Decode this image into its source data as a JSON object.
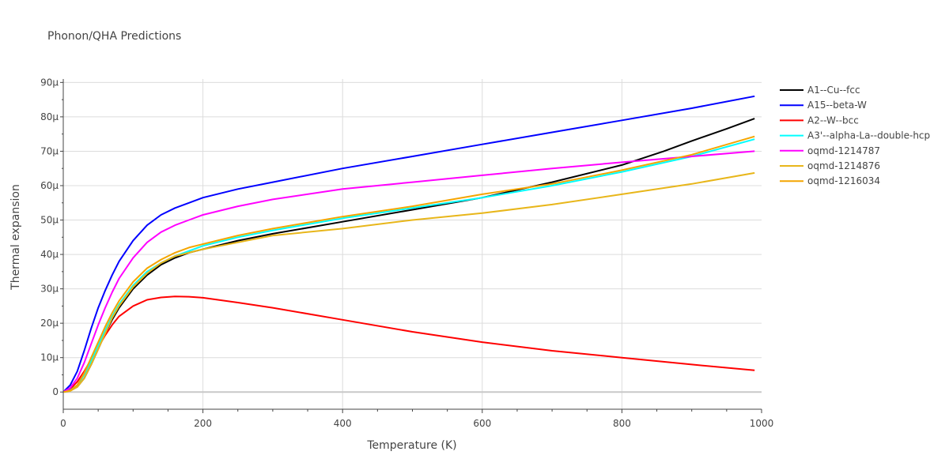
{
  "chart_data": {
    "type": "line",
    "title": "Phonon/QHA Predictions",
    "xlabel": "Temperature (K)",
    "ylabel": "Thermal expansion",
    "xlim": [
      0,
      1000
    ],
    "ylim": [
      -5,
      91
    ],
    "x_ticks": [
      0,
      200,
      400,
      600,
      800,
      1000
    ],
    "x_tick_labels": [
      "0",
      "200",
      "400",
      "600",
      "800",
      "1000"
    ],
    "y_ticks": [
      0,
      10,
      20,
      30,
      40,
      50,
      60,
      70,
      80,
      90
    ],
    "y_tick_labels": [
      "0",
      "10µ",
      "20µ",
      "30µ",
      "40µ",
      "50µ",
      "60µ",
      "70µ",
      "80µ",
      "90µ"
    ],
    "y_unit": "µ",
    "grid": true,
    "legend_position": "right",
    "series": [
      {
        "name": "A1--Cu--fcc",
        "color": "#000000",
        "x": [
          0,
          10,
          20,
          30,
          40,
          50,
          60,
          70,
          80,
          100,
          120,
          140,
          160,
          180,
          200,
          250,
          300,
          400,
          500,
          600,
          700,
          800,
          860,
          900,
          950,
          990
        ],
        "y": [
          0,
          0.4,
          1.5,
          4,
          8,
          12.5,
          17,
          21,
          24.5,
          30,
          34,
          37,
          39,
          40.5,
          41.5,
          44,
          46,
          49.5,
          53,
          56.5,
          61,
          66,
          70,
          73,
          76.5,
          79.5
        ]
      },
      {
        "name": "A15--beta-W",
        "color": "#0000ff",
        "x": [
          0,
          10,
          20,
          30,
          40,
          50,
          60,
          70,
          80,
          100,
          120,
          140,
          160,
          180,
          200,
          250,
          300,
          400,
          500,
          600,
          700,
          800,
          900,
          990
        ],
        "y": [
          0,
          2,
          6,
          12,
          18.5,
          24.5,
          29.5,
          34,
          38,
          44,
          48.5,
          51.5,
          53.5,
          55,
          56.5,
          59,
          61,
          65,
          68.5,
          72,
          75.5,
          79,
          82.5,
          86
        ]
      },
      {
        "name": "A2--W--bcc",
        "color": "#ff0000",
        "x": [
          0,
          10,
          20,
          30,
          40,
          50,
          60,
          70,
          80,
          100,
          120,
          140,
          160,
          180,
          200,
          250,
          300,
          400,
          500,
          600,
          700,
          800,
          900,
          990
        ],
        "y": [
          0,
          0.8,
          3,
          6,
          9.5,
          13,
          16.5,
          19.5,
          22,
          25,
          26.8,
          27.5,
          27.8,
          27.7,
          27.4,
          26,
          24.5,
          21,
          17.5,
          14.5,
          12,
          10,
          8,
          6.3
        ]
      },
      {
        "name": "A3'--alpha-La--double-hcp",
        "color": "#00ffff",
        "x": [
          0,
          10,
          20,
          30,
          40,
          50,
          60,
          70,
          80,
          100,
          120,
          140,
          160,
          180,
          200,
          250,
          300,
          400,
          500,
          600,
          700,
          800,
          900,
          990
        ],
        "y": [
          0,
          0.5,
          2,
          5,
          9,
          13.5,
          18,
          22,
          25.5,
          31,
          35,
          37.5,
          39.5,
          41,
          42.5,
          45,
          47,
          50.5,
          53.5,
          56.5,
          60,
          64,
          68.5,
          73.5
        ]
      },
      {
        "name": "oqmd-1214787",
        "color": "#ff00ff",
        "x": [
          0,
          10,
          20,
          30,
          40,
          50,
          60,
          70,
          80,
          100,
          120,
          140,
          160,
          180,
          200,
          250,
          300,
          400,
          500,
          600,
          700,
          800,
          900,
          990
        ],
        "y": [
          0,
          1.2,
          4,
          8.5,
          14,
          19.5,
          24.5,
          29,
          33,
          39,
          43.5,
          46.5,
          48.5,
          50,
          51.5,
          54,
          56,
          59,
          61,
          63,
          65,
          66.8,
          68.5,
          70
        ]
      },
      {
        "name": "oqmd-1214876",
        "color": "#e8b61a",
        "x": [
          0,
          10,
          20,
          30,
          40,
          50,
          60,
          70,
          80,
          100,
          120,
          140,
          160,
          180,
          200,
          250,
          300,
          400,
          500,
          600,
          700,
          800,
          900,
          990
        ],
        "y": [
          0,
          0.3,
          1.5,
          4,
          8,
          12.5,
          17,
          21.5,
          25,
          30.5,
          34.5,
          37.5,
          39.5,
          40.5,
          41.5,
          43.5,
          45.5,
          47.5,
          50,
          52,
          54.5,
          57.5,
          60.5,
          63.7
        ]
      },
      {
        "name": "oqmd-1216034",
        "color": "#f4a500",
        "x": [
          0,
          10,
          20,
          30,
          40,
          50,
          60,
          70,
          80,
          100,
          120,
          140,
          160,
          180,
          200,
          250,
          300,
          400,
          500,
          600,
          700,
          800,
          900,
          990
        ],
        "y": [
          0,
          0.4,
          2,
          5.5,
          10,
          14.5,
          19,
          23,
          26.5,
          32,
          36,
          38.5,
          40.5,
          42,
          43,
          45.5,
          47.5,
          51,
          54,
          57.5,
          60.5,
          64.5,
          69,
          74.3
        ]
      }
    ]
  }
}
